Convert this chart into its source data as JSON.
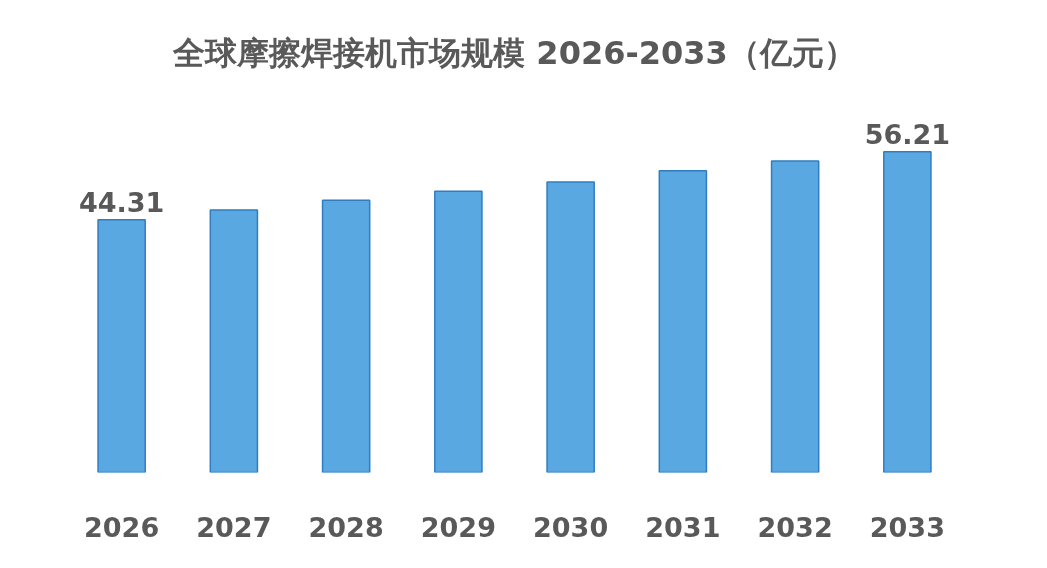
{
  "chart_data": {
    "type": "bar",
    "title": "全球摩擦焊接机市场规模 2026-2033（亿元）",
    "categories": [
      "2026",
      "2027",
      "2028",
      "2029",
      "2030",
      "2031",
      "2032",
      "2033"
    ],
    "values": [
      44.31,
      46.0,
      47.7,
      49.3,
      50.9,
      52.9,
      54.6,
      56.21
    ],
    "value_labels": [
      "44.31",
      null,
      null,
      null,
      null,
      null,
      null,
      "56.21"
    ],
    "color": "#5aa8e2",
    "tick_labels": "x"
  }
}
